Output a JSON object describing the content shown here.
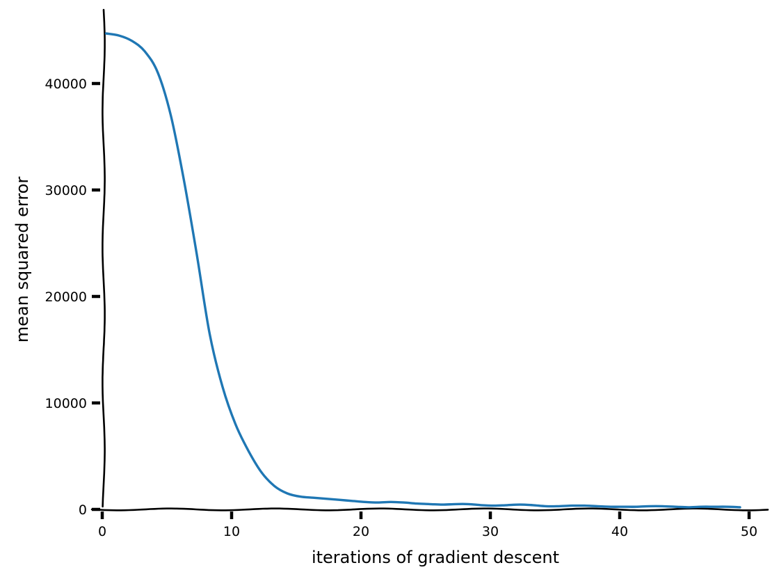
{
  "chart_data": {
    "type": "line",
    "title": "",
    "xlabel": "iterations of gradient descent",
    "ylabel": "mean squared error",
    "xlim": [
      0,
      52
    ],
    "ylim": [
      0,
      46500
    ],
    "xticks": [
      0,
      10,
      20,
      30,
      40,
      50
    ],
    "yticks": [
      0,
      10000,
      20000,
      30000,
      40000
    ],
    "xtick_labels": [
      "0",
      "10",
      "20",
      "30",
      "40",
      "50"
    ],
    "ytick_labels": [
      "0",
      "10000",
      "20000",
      "30000",
      "40000"
    ],
    "grid": false,
    "legend": "none",
    "style": "hand-drawn (xkcd)",
    "series": [
      {
        "color": "#1f77b4",
        "x": [
          0,
          1,
          2,
          3,
          4,
          5,
          6,
          7,
          8,
          9,
          10,
          11,
          12,
          13,
          14,
          15,
          16,
          17,
          18,
          19,
          20,
          21,
          22,
          23,
          24,
          25,
          26,
          27,
          28,
          29,
          30,
          31,
          32,
          33,
          34,
          35,
          36,
          37,
          38,
          39,
          40,
          41,
          42,
          43,
          44,
          45,
          46,
          47,
          48,
          49
        ],
        "values": [
          44700,
          44500,
          44000,
          43000,
          41000,
          37000,
          31000,
          24000,
          16500,
          11500,
          8000,
          5500,
          3500,
          2200,
          1500,
          1200,
          1100,
          1000,
          900,
          800,
          700,
          650,
          700,
          650,
          550,
          500,
          450,
          500,
          500,
          400,
          350,
          400,
          450,
          400,
          300,
          300,
          350,
          350,
          300,
          250,
          250,
          250,
          300,
          300,
          250,
          200,
          250,
          250,
          250,
          200
        ]
      }
    ]
  }
}
